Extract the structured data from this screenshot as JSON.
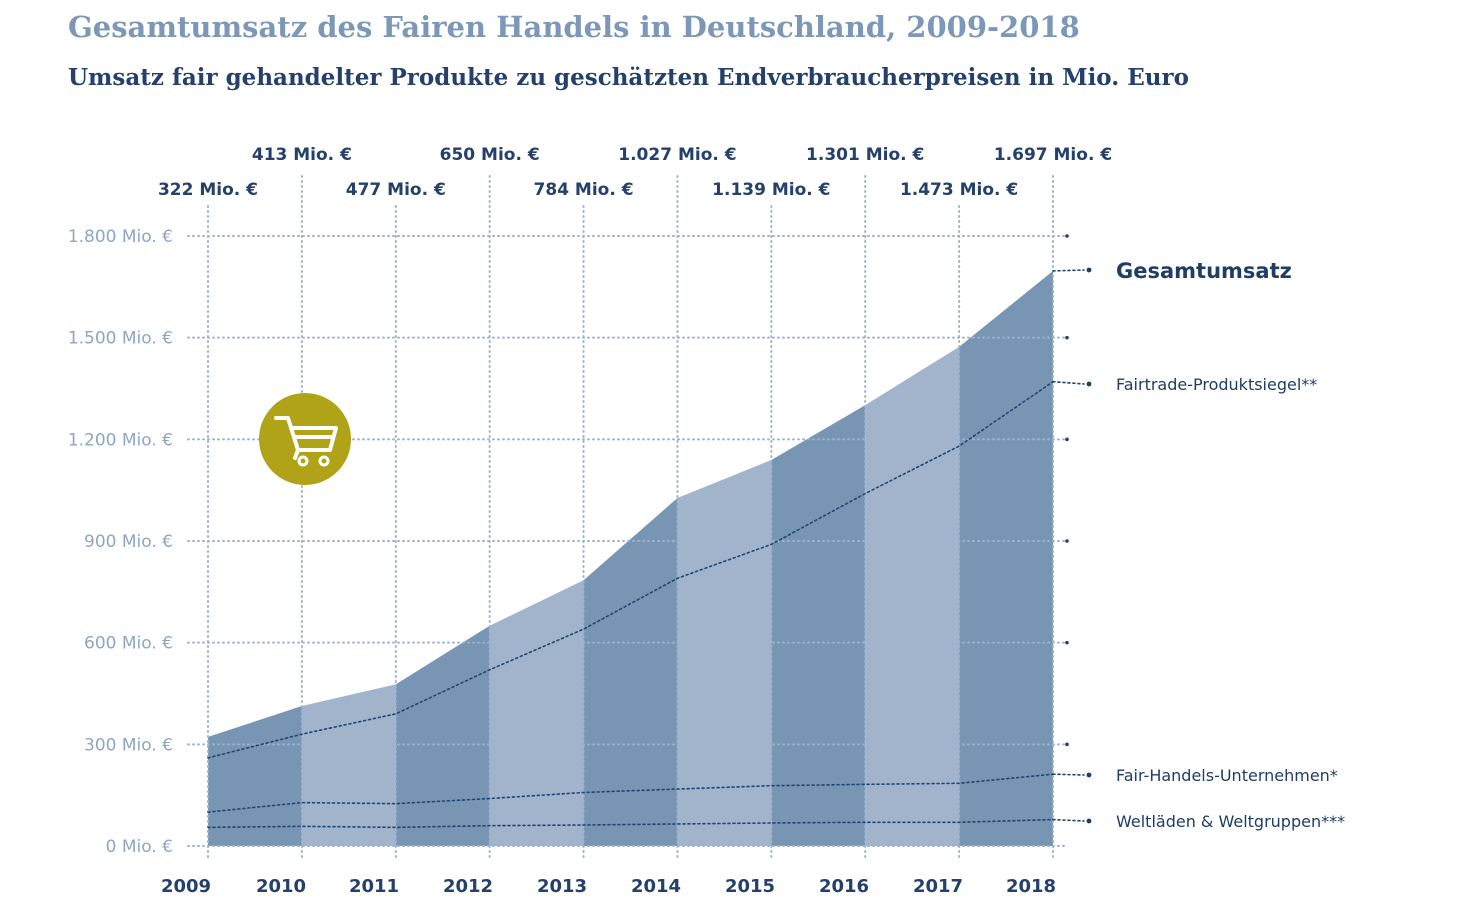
{
  "title": "Gesamtumsatz des Fairen Handels in Deutschland, 2009-2018",
  "subtitle": "Umsatz fair gehandelter Produkte zu geschätzten Endverbraucherpreisen in Mio. Euro",
  "icon": "shopping-cart-icon",
  "colors": {
    "dark_band": "#7895b4",
    "light_band": "#a1b4cc",
    "accent": "#b0a318",
    "text_dark": "#24406b",
    "text_light": "#8ea6c4",
    "grid": "#9db3cf"
  },
  "chart_data": {
    "type": "area",
    "title": "Gesamtumsatz des Fairen Handels in Deutschland, 2009-2018",
    "x": [
      "2009",
      "2010",
      "2011",
      "2012",
      "2013",
      "2014",
      "2015",
      "2016",
      "2017",
      "2018"
    ],
    "ylim": [
      0,
      1800
    ],
    "yticks": [
      0,
      300,
      600,
      900,
      1200,
      1500,
      1800
    ],
    "ytick_labels": [
      "0 Mio. €",
      "300 Mio. €",
      "600 Mio. €",
      "900 Mio. €",
      "1.200 Mio. €",
      "1.500 Mio. €",
      "1.800 Mio. €"
    ],
    "grid": true,
    "data_labels": [
      "322 Mio. €",
      "413 Mio. €",
      "477 Mio. €",
      "650 Mio. €",
      "784 Mio. €",
      "1.027 Mio. €",
      "1.139 Mio. €",
      "1.301 Mio. €",
      "1.473 Mio. €",
      "1.697 Mio. €"
    ],
    "series": [
      {
        "name": "Gesamtumsatz",
        "style": "area",
        "values": [
          322,
          413,
          477,
          650,
          784,
          1027,
          1139,
          1301,
          1473,
          1697
        ]
      },
      {
        "name": "Fairtrade-Produktsiegel**",
        "style": "dotted",
        "values": [
          260,
          330,
          390,
          520,
          640,
          790,
          890,
          1040,
          1180,
          1370
        ]
      },
      {
        "name": "Fair-Handels-Unternehmen*",
        "style": "dotted",
        "values": [
          100,
          128,
          125,
          140,
          158,
          168,
          178,
          182,
          185,
          212
        ]
      },
      {
        "name": "Weltläden & Weltgruppen***",
        "style": "dotted",
        "values": [
          55,
          58,
          55,
          60,
          62,
          65,
          68,
          70,
          70,
          78
        ]
      }
    ],
    "legend_placement": "right"
  }
}
